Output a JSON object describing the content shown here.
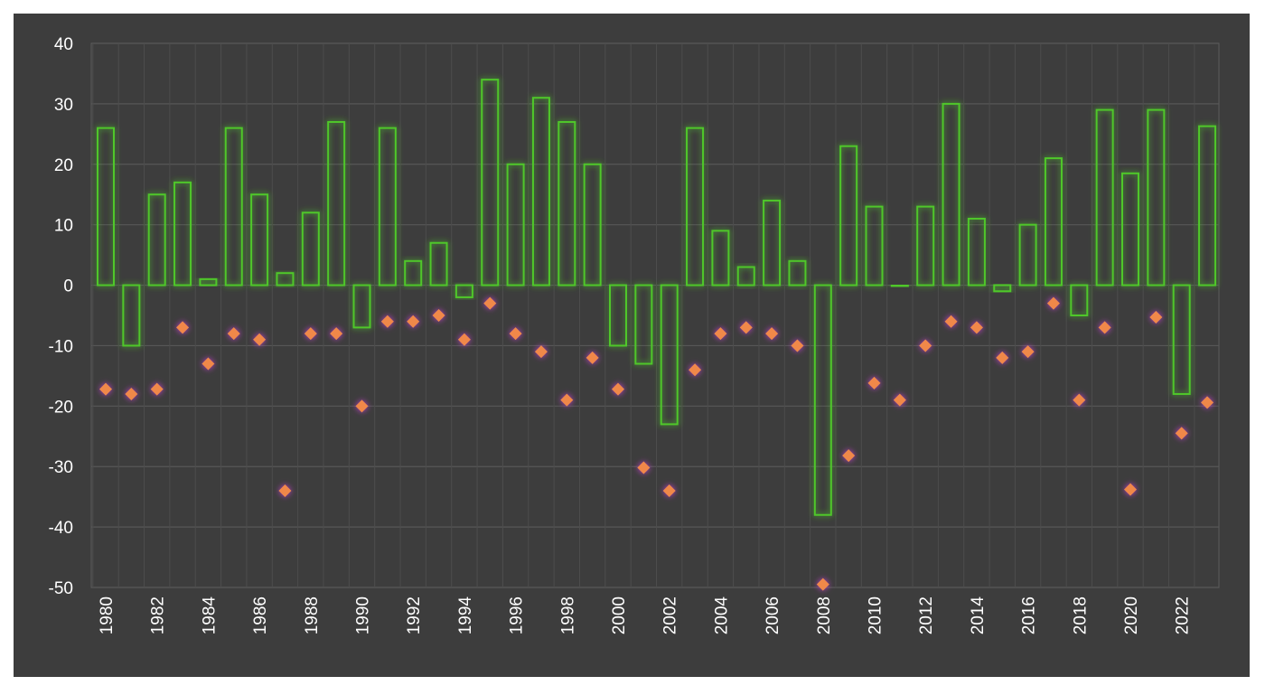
{
  "chart_data": {
    "type": "bar",
    "title": "",
    "xlabel": "",
    "ylabel": "",
    "ylim": [
      -50,
      40
    ],
    "yticks": [
      40,
      30,
      20,
      10,
      0,
      -10,
      -20,
      -30,
      -40,
      -50
    ],
    "xlabels": [
      "1980",
      "1982",
      "1984",
      "1986",
      "1988",
      "1990",
      "1992",
      "1994",
      "1996",
      "1998",
      "2000",
      "2002",
      "2004",
      "2006",
      "2008",
      "2010",
      "2012",
      "2014",
      "2016",
      "2018",
      "2020",
      "2022"
    ],
    "grid": true,
    "legend": "none",
    "categories": [
      "1980",
      "1981",
      "1982",
      "1983",
      "1984",
      "1985",
      "1986",
      "1987",
      "1988",
      "1989",
      "1990",
      "1991",
      "1992",
      "1993",
      "1994",
      "1995",
      "1996",
      "1997",
      "1998",
      "1999",
      "2000",
      "2001",
      "2002",
      "2003",
      "2004",
      "2005",
      "2006",
      "2007",
      "2008",
      "2009",
      "2010",
      "2011",
      "2012",
      "2013",
      "2014",
      "2015",
      "2016",
      "2017",
      "2018",
      "2019",
      "2020",
      "2021",
      "2022",
      "2023"
    ],
    "series": [
      {
        "type": "bar",
        "color": "#4fc72a",
        "values": [
          26,
          -10,
          15,
          17,
          1,
          26,
          15,
          2,
          12,
          27,
          -7,
          26,
          4,
          7,
          -2,
          34,
          20,
          31,
          27,
          20,
          -10,
          -13,
          -23,
          26,
          9,
          3,
          14,
          4,
          -38,
          23,
          13,
          0,
          13,
          30,
          11,
          -1,
          10,
          21,
          -5,
          29,
          18.5,
          29,
          -18,
          26.3
        ]
      },
      {
        "type": "scatter",
        "color": "#f0884a",
        "marker": "diamond",
        "values": [
          -17.2,
          -18,
          -17.2,
          -7,
          -13,
          -8,
          -9,
          -34,
          -8,
          -8,
          -20,
          -6,
          -6,
          -5,
          -9,
          -3,
          -8,
          -11,
          -19,
          -12,
          -17.2,
          -30.2,
          -34,
          -14,
          -8,
          -7,
          -8,
          -10,
          -49.5,
          -28.2,
          -16.2,
          -19,
          -10,
          -6,
          -7,
          -12,
          -11,
          -3,
          -19,
          -7,
          -33.8,
          -5.3,
          -24.5,
          -19.4
        ]
      }
    ]
  }
}
